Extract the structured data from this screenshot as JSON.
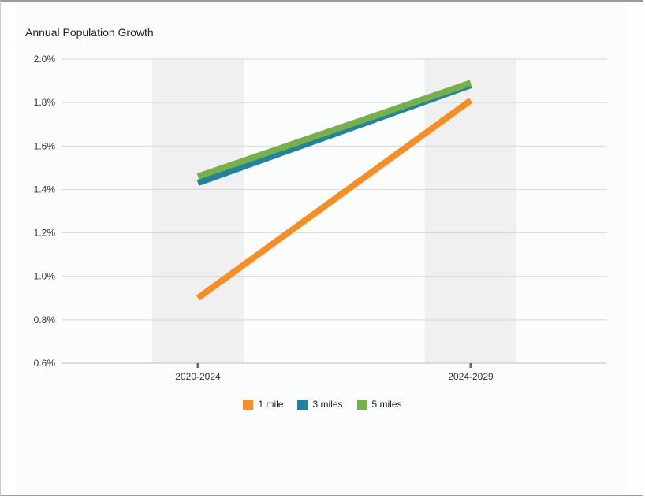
{
  "chart_data": {
    "type": "line",
    "title": "Annual Population Growth",
    "xlabel": "",
    "ylabel": "",
    "categories": [
      "2020-2024",
      "2024-2029"
    ],
    "ylim": [
      0.6,
      2.0
    ],
    "yticks": [
      "2.0%",
      "1.8%",
      "1.6%",
      "1.4%",
      "1.2%",
      "1.0%",
      "0.8%",
      "0.6%"
    ],
    "ytick_values": [
      2.0,
      1.8,
      1.6,
      1.4,
      1.2,
      1.0,
      0.8,
      0.6
    ],
    "series": [
      {
        "name": "1 mile",
        "values": [
          0.9,
          1.81
        ],
        "color": "#f68e26"
      },
      {
        "name": "3 miles",
        "values": [
          1.43,
          1.88
        ],
        "color": "#23829f"
      },
      {
        "name": "5 miles",
        "values": [
          1.46,
          1.89
        ],
        "color": "#76b04b"
      }
    ],
    "grid": true,
    "legend_position": "bottom"
  }
}
